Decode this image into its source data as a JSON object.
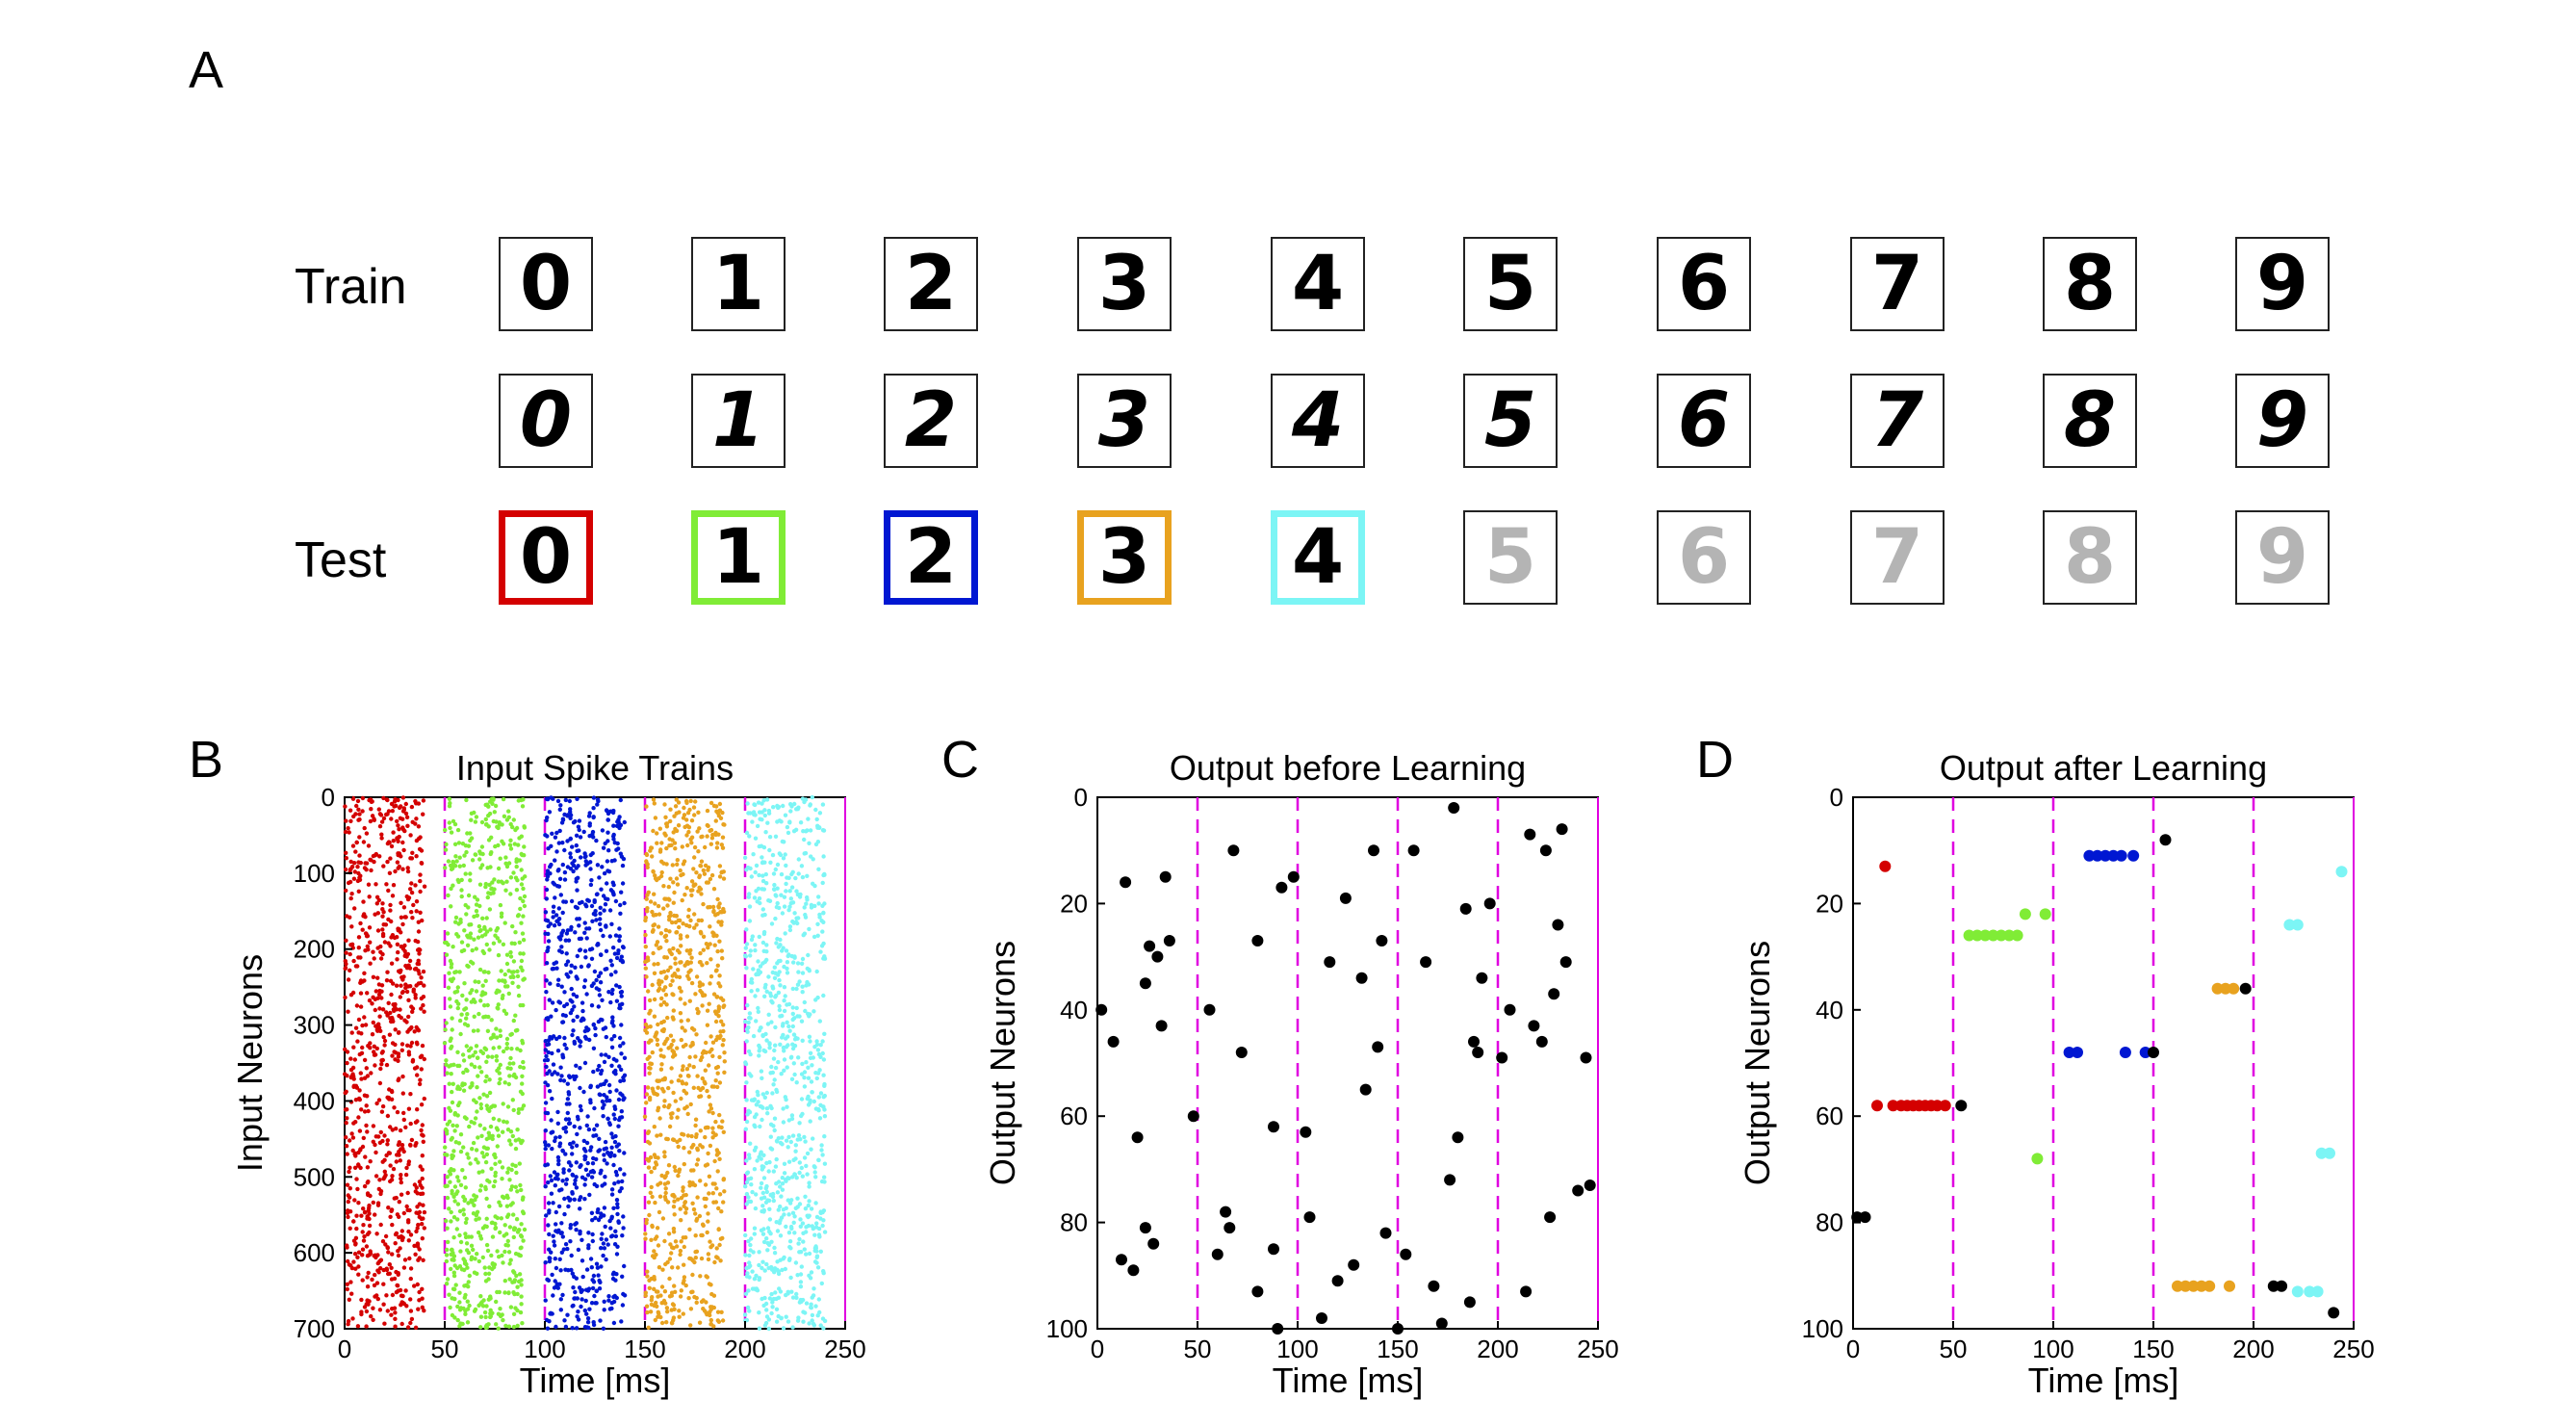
{
  "panel_a": {
    "letter": "A",
    "train_label": "Train",
    "test_label": "Test",
    "train_row_1": [
      "0",
      "1",
      "2",
      "3",
      "4",
      "5",
      "6",
      "7",
      "8",
      "9"
    ],
    "train_row_2": [
      "0",
      "1",
      "2",
      "3",
      "4",
      "5",
      "6",
      "7",
      "8",
      "9"
    ],
    "test_row": [
      "0",
      "1",
      "2",
      "3",
      "4",
      "5",
      "6",
      "7",
      "8",
      "9"
    ],
    "test_highlight_colors": [
      "#d40000",
      "#80ec36",
      "#0017d2",
      "#e8a21f",
      "#7cf5f5"
    ],
    "test_faded_color": "#b4b4b4"
  },
  "chart_data": [
    {
      "panel": "B",
      "type": "scatter",
      "title": "Input Spike Trains",
      "xlabel": "Time [ms]",
      "ylabel": "Input Neurons",
      "xlim": [
        0,
        250
      ],
      "ylim": [
        700,
        0
      ],
      "xticks": [
        "0",
        "50",
        "100",
        "150",
        "200",
        "250"
      ],
      "yticks": [
        "0",
        "100",
        "200",
        "300",
        "400",
        "500",
        "600",
        "700"
      ],
      "vlines": [
        50,
        100,
        150,
        200
      ],
      "vline_color": "#e000e0",
      "marker": "small-dot",
      "series": [
        {
          "x_range": [
            0,
            40
          ],
          "y_range": [
            0,
            700
          ],
          "count": 900,
          "color": "#d40000"
        },
        {
          "x_range": [
            50,
            90
          ],
          "y_range": [
            0,
            700
          ],
          "count": 900,
          "color": "#80ec36"
        },
        {
          "x_range": [
            100,
            140
          ],
          "y_range": [
            0,
            700
          ],
          "count": 900,
          "color": "#0017d2"
        },
        {
          "x_range": [
            150,
            190
          ],
          "y_range": [
            0,
            700
          ],
          "count": 900,
          "color": "#e8a21f"
        },
        {
          "x_range": [
            200,
            240
          ],
          "y_range": [
            0,
            700
          ],
          "count": 900,
          "color": "#7cf5f5"
        }
      ]
    },
    {
      "panel": "C",
      "type": "scatter",
      "title": "Output before Learning",
      "xlabel": "Time [ms]",
      "ylabel": "Output Neurons",
      "xlim": [
        0,
        250
      ],
      "ylim": [
        100,
        0
      ],
      "xticks": [
        "0",
        "50",
        "100",
        "150",
        "200",
        "250"
      ],
      "yticks": [
        "0",
        "20",
        "40",
        "60",
        "80",
        "100"
      ],
      "vlines": [
        50,
        100,
        150,
        200
      ],
      "vline_color": "#e000e0",
      "series": [
        {
          "color": "#000000",
          "points": [
            [
              2,
              40
            ],
            [
              8,
              46
            ],
            [
              12,
              87
            ],
            [
              14,
              16
            ],
            [
              18,
              89
            ],
            [
              20,
              64
            ],
            [
              24,
              35
            ],
            [
              24,
              81
            ],
            [
              26,
              28
            ],
            [
              28,
              84
            ],
            [
              30,
              30
            ],
            [
              32,
              43
            ],
            [
              34,
              15
            ],
            [
              36,
              27
            ],
            [
              48,
              60
            ],
            [
              56,
              40
            ],
            [
              60,
              86
            ],
            [
              64,
              78
            ],
            [
              66,
              81
            ],
            [
              68,
              10
            ],
            [
              72,
              48
            ],
            [
              80,
              93
            ],
            [
              80,
              27
            ],
            [
              88,
              62
            ],
            [
              88,
              85
            ],
            [
              90,
              100
            ],
            [
              92,
              17
            ],
            [
              98,
              15
            ],
            [
              104,
              63
            ],
            [
              106,
              79
            ],
            [
              112,
              98
            ],
            [
              116,
              31
            ],
            [
              120,
              91
            ],
            [
              124,
              19
            ],
            [
              128,
              88
            ],
            [
              132,
              34
            ],
            [
              134,
              55
            ],
            [
              138,
              10
            ],
            [
              140,
              47
            ],
            [
              142,
              27
            ],
            [
              144,
              82
            ],
            [
              150,
              100
            ],
            [
              154,
              86
            ],
            [
              158,
              10
            ],
            [
              164,
              31
            ],
            [
              168,
              92
            ],
            [
              172,
              99
            ],
            [
              176,
              72
            ],
            [
              178,
              2
            ],
            [
              180,
              64
            ],
            [
              184,
              21
            ],
            [
              186,
              95
            ],
            [
              188,
              46
            ],
            [
              190,
              48
            ],
            [
              192,
              34
            ],
            [
              196,
              20
            ],
            [
              202,
              49
            ],
            [
              206,
              40
            ],
            [
              214,
              93
            ],
            [
              216,
              7
            ],
            [
              218,
              43
            ],
            [
              222,
              46
            ],
            [
              224,
              10
            ],
            [
              226,
              79
            ],
            [
              228,
              37
            ],
            [
              230,
              24
            ],
            [
              232,
              6
            ],
            [
              234,
              31
            ],
            [
              240,
              74
            ],
            [
              244,
              49
            ],
            [
              246,
              73
            ]
          ]
        }
      ]
    },
    {
      "panel": "D",
      "type": "scatter",
      "title": "Output after Learning",
      "xlabel": "Time [ms]",
      "ylabel": "Output Neurons",
      "xlim": [
        0,
        250
      ],
      "ylim": [
        100,
        0
      ],
      "xticks": [
        "0",
        "50",
        "100",
        "150",
        "200",
        "250"
      ],
      "yticks": [
        "0",
        "20",
        "40",
        "60",
        "80",
        "100"
      ],
      "vlines": [
        50,
        100,
        150,
        200
      ],
      "vline_color": "#e000e0",
      "series": [
        {
          "color": "#d40000",
          "points": [
            [
              12,
              58
            ],
            [
              16,
              13
            ],
            [
              20,
              58
            ],
            [
              24,
              58
            ],
            [
              27,
              58
            ],
            [
              30,
              58
            ],
            [
              33,
              58
            ],
            [
              36,
              58
            ],
            [
              39,
              58
            ],
            [
              42,
              58
            ],
            [
              46,
              58
            ]
          ]
        },
        {
          "color": "#80ec36",
          "points": [
            [
              58,
              26
            ],
            [
              62,
              26
            ],
            [
              66,
              26
            ],
            [
              70,
              26
            ],
            [
              74,
              26
            ],
            [
              78,
              26
            ],
            [
              82,
              26
            ],
            [
              86,
              22
            ],
            [
              92,
              68
            ],
            [
              96,
              22
            ]
          ]
        },
        {
          "color": "#0017d2",
          "points": [
            [
              108,
              48
            ],
            [
              112,
              48
            ],
            [
              118,
              11
            ],
            [
              122,
              11
            ],
            [
              126,
              11
            ],
            [
              130,
              11
            ],
            [
              134,
              11
            ],
            [
              136,
              48
            ],
            [
              140,
              11
            ],
            [
              146,
              48
            ]
          ]
        },
        {
          "color": "#e8a21f",
          "points": [
            [
              162,
              92
            ],
            [
              166,
              92
            ],
            [
              170,
              92
            ],
            [
              174,
              92
            ],
            [
              178,
              92
            ],
            [
              182,
              36
            ],
            [
              186,
              36
            ],
            [
              188,
              92
            ],
            [
              190,
              36
            ]
          ]
        },
        {
          "color": "#7cf5f5",
          "points": [
            [
              218,
              24
            ],
            [
              222,
              24
            ],
            [
              222,
              93
            ],
            [
              228,
              93
            ],
            [
              232,
              93
            ],
            [
              234,
              67
            ],
            [
              238,
              67
            ],
            [
              244,
              14
            ]
          ]
        },
        {
          "color": "#000000",
          "points": [
            [
              2,
              79
            ],
            [
              6,
              79
            ],
            [
              54,
              58
            ],
            [
              150,
              48
            ],
            [
              156,
              8
            ],
            [
              196,
              36
            ],
            [
              210,
              92
            ],
            [
              214,
              92
            ],
            [
              240,
              97
            ]
          ]
        }
      ]
    }
  ]
}
